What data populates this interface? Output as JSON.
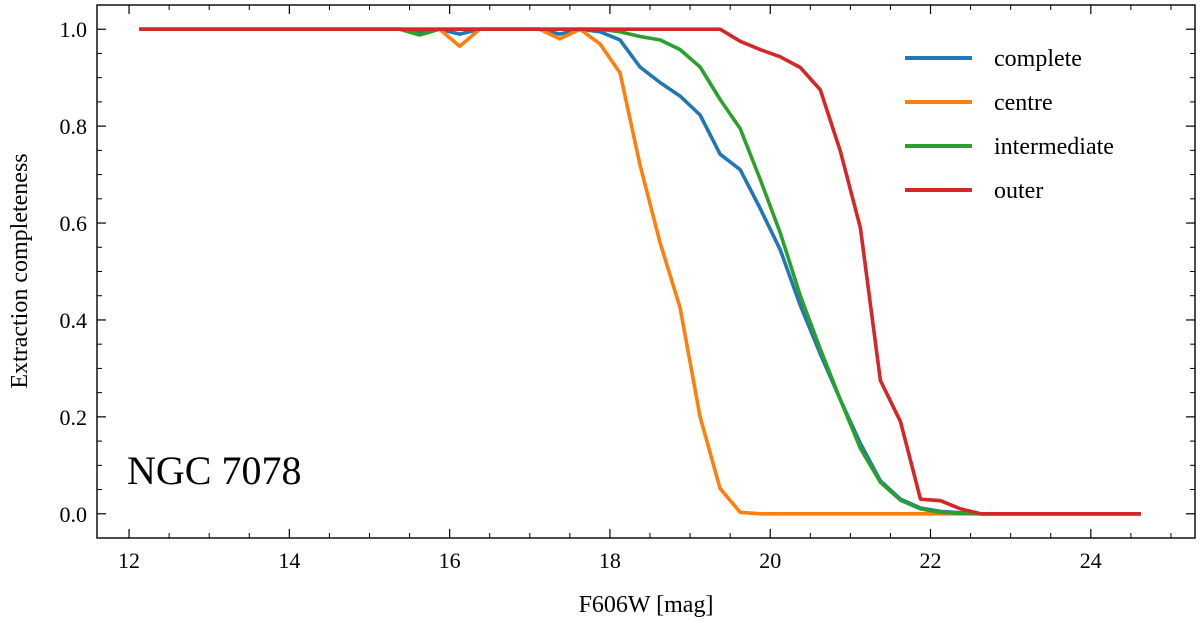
{
  "chart_data": {
    "type": "line",
    "title": "",
    "xlabel": "F606W [mag]",
    "ylabel": "Extraction completeness",
    "xlim": [
      11.6,
      25.3
    ],
    "ylim": [
      -0.05,
      1.05
    ],
    "xticks": [
      12,
      14,
      16,
      18,
      20,
      22,
      24
    ],
    "yticks": [
      0.0,
      0.2,
      0.4,
      0.6,
      0.8,
      1.0
    ],
    "xtick_labels": [
      "12",
      "14",
      "16",
      "18",
      "20",
      "22",
      "24"
    ],
    "ytick_labels": [
      "0.0",
      "0.2",
      "0.4",
      "0.6",
      "0.8",
      "1.0"
    ],
    "grid": false,
    "legend_position": "top-right",
    "annotation": "NGC 7078",
    "series": [
      {
        "name": "complete",
        "color": "#1f77b4",
        "x": [
          12.125,
          15.375,
          15.625,
          15.875,
          16.125,
          16.375,
          16.625,
          17.125,
          17.375,
          17.625,
          17.875,
          18.125,
          18.375,
          18.625,
          18.875,
          19.125,
          19.375,
          19.625,
          19.875,
          20.125,
          20.375,
          20.625,
          20.875,
          21.125,
          21.375,
          21.625,
          21.875,
          22.125,
          22.375,
          22.625,
          24.625
        ],
        "y": [
          1.0,
          1.0,
          0.995,
          1.0,
          0.99,
          1.0,
          1.0,
          1.0,
          0.99,
          1.0,
          0.995,
          0.978,
          0.922,
          0.89,
          0.862,
          0.823,
          0.742,
          0.71,
          0.63,
          0.545,
          0.43,
          0.33,
          0.235,
          0.145,
          0.068,
          0.03,
          0.012,
          0.005,
          0.002,
          0.0,
          0.0
        ]
      },
      {
        "name": "centre",
        "color": "#ff7f0e",
        "x": [
          12.125,
          15.375,
          15.875,
          16.125,
          16.375,
          16.625,
          17.125,
          17.375,
          17.625,
          17.875,
          18.125,
          18.375,
          18.625,
          18.875,
          19.125,
          19.375,
          19.625,
          19.875,
          20.125,
          20.625,
          24.625
        ],
        "y": [
          1.0,
          1.0,
          1.0,
          0.965,
          1.0,
          1.0,
          1.0,
          0.98,
          1.0,
          0.97,
          0.91,
          0.72,
          0.56,
          0.425,
          0.2,
          0.052,
          0.003,
          0.0,
          0.0,
          0.0,
          0.0
        ]
      },
      {
        "name": "intermediate",
        "color": "#2ca02c",
        "x": [
          12.125,
          15.375,
          15.625,
          15.875,
          16.125,
          16.625,
          17.125,
          17.625,
          17.875,
          18.125,
          18.375,
          18.625,
          18.875,
          19.125,
          19.375,
          19.625,
          19.875,
          20.125,
          20.375,
          20.625,
          20.875,
          21.125,
          21.375,
          21.625,
          21.875,
          22.125,
          22.375,
          22.625,
          24.625
        ],
        "y": [
          1.0,
          1.0,
          0.988,
          1.0,
          1.0,
          1.0,
          1.0,
          1.0,
          1.0,
          0.995,
          0.985,
          0.978,
          0.958,
          0.922,
          0.855,
          0.795,
          0.69,
          0.58,
          0.45,
          0.34,
          0.235,
          0.135,
          0.065,
          0.028,
          0.01,
          0.003,
          0.001,
          0.0,
          0.0
        ]
      },
      {
        "name": "outer",
        "color": "#d62728",
        "x": [
          12.125,
          19.375,
          19.625,
          19.875,
          20.125,
          20.375,
          20.625,
          20.875,
          21.125,
          21.375,
          21.625,
          21.875,
          22.125,
          22.375,
          22.625,
          24.625
        ],
        "y": [
          1.0,
          1.0,
          0.975,
          0.958,
          0.943,
          0.921,
          0.875,
          0.748,
          0.59,
          0.275,
          0.19,
          0.03,
          0.027,
          0.01,
          0.0,
          0.0
        ]
      }
    ]
  }
}
